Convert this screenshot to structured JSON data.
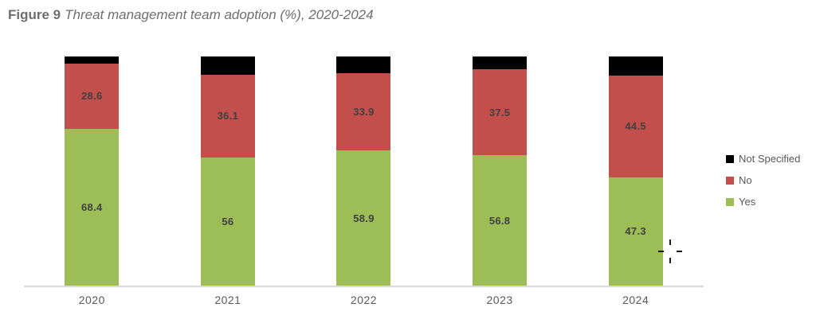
{
  "figure": {
    "label": "Figure 9",
    "title": "Threat management team adoption (%), 2020-2024"
  },
  "chart_data": {
    "type": "bar",
    "stacked": true,
    "title": "Figure 9 Threat management team adoption (%), 2020-2024",
    "categories": [
      "2020",
      "2021",
      "2022",
      "2023",
      "2024"
    ],
    "series": [
      {
        "name": "Yes",
        "color": "#9dbd57",
        "values": [
          68.4,
          56,
          58.9,
          56.8,
          47.3
        ],
        "value_labels": [
          "68.4",
          "56",
          "58.9",
          "56.8",
          "47.3"
        ]
      },
      {
        "name": "No",
        "color": "#c24f4c",
        "values": [
          28.6,
          36.1,
          33.9,
          37.5,
          44.5
        ],
        "value_labels": [
          "28.6",
          "36.1",
          "33.9",
          "37.5",
          "44.5"
        ]
      },
      {
        "name": "Not Specified",
        "color": "#000000",
        "values": [
          3,
          7.9,
          7.2,
          5.7,
          8.2
        ],
        "value_labels": [
          "",
          "",
          "",
          "",
          ""
        ]
      }
    ],
    "ylim": [
      0,
      100
    ],
    "grid": false,
    "legend_position": "right",
    "legend_order": [
      "Not Specified",
      "No",
      "Yes"
    ],
    "value_label_color": "#404040",
    "axis_line_color": "#d9d9d9"
  },
  "legend": {
    "items": [
      {
        "label": "Not Specified",
        "color": "#000000"
      },
      {
        "label": "No",
        "color": "#c24f4c"
      },
      {
        "label": "Yes",
        "color": "#9dbd57"
      }
    ]
  },
  "cursor": {
    "type": "precision-crosshair"
  }
}
